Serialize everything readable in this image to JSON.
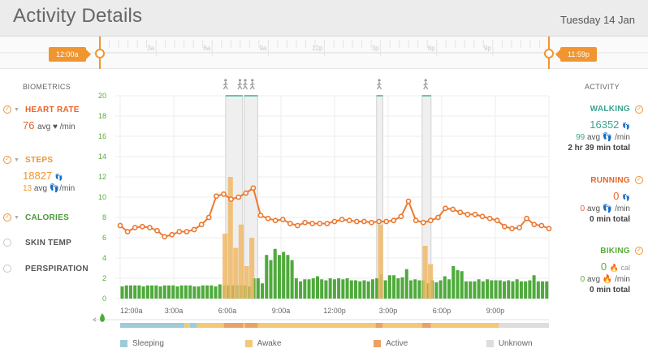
{
  "header": {
    "title": "Activity Details",
    "date": "Tuesday 14 Jan"
  },
  "timeline": {
    "start_label": "12:00a",
    "end_label": "11:59p",
    "ruler_labels": [
      "3a",
      "6a",
      "9a",
      "12p",
      "3p",
      "6p",
      "9p"
    ]
  },
  "biometrics": {
    "heading": "BIOMETRICS",
    "heart_rate": {
      "label": "HEART RATE",
      "value": "76",
      "unit": "avg ♥ /min",
      "color": "#e8632a"
    },
    "steps": {
      "label": "STEPS",
      "value": "18827",
      "value_icon": "👣",
      "avg": "13",
      "avg_unit": "avg 👣/min",
      "color": "#f0952f"
    },
    "calories": {
      "label": "CALORIES",
      "color": "#4a9a3a"
    },
    "skin_temp": {
      "label": "SKIN TEMP",
      "color": "#555555"
    },
    "perspiration": {
      "label": "PERSPIRATION",
      "color": "#555555"
    }
  },
  "activity": {
    "heading": "ACTIVITY",
    "walking": {
      "label": "WALKING",
      "value": "16352",
      "value_icon": "👣",
      "avg": "99",
      "avg_unit": "avg 👣 /min",
      "total": "2 hr 39 min total",
      "color": "#3aa58f"
    },
    "running": {
      "label": "RUNNING",
      "value": "0",
      "value_icon": "👣",
      "avg": "0",
      "avg_unit": "avg 👣 /min",
      "total": "0 min total",
      "color": "#e8632a"
    },
    "biking": {
      "label": "BIKING",
      "value": "0",
      "value_icon": "🔥 cal",
      "avg": "0",
      "avg_unit": "avg 🔥 /min",
      "total": "0 min total",
      "color": "#5aab3a"
    }
  },
  "legend": [
    {
      "label": "Sleeping",
      "color": "#9ecbd8"
    },
    {
      "label": "Awake",
      "color": "#f3c877"
    },
    {
      "label": "Active",
      "color": "#eaa167"
    },
    {
      "label": "Unknown",
      "color": "#dddddd"
    }
  ],
  "chart_data": {
    "type": "bar",
    "x_tick_labels": [
      "12:00a",
      "3:00a",
      "6:00a",
      "9:00a",
      "12:00p",
      "3:00p",
      "6:00p",
      "9:00p"
    ],
    "y_ticks": [
      0,
      2,
      4,
      6,
      8,
      10,
      12,
      14,
      16,
      18,
      20
    ],
    "ylim": [
      0,
      20
    ],
    "x_hours_range": [
      0,
      24
    ],
    "series": [
      {
        "kind": "calories",
        "values": [
          1.2,
          1.3,
          1.3,
          1.3,
          1.3,
          1.2,
          1.3,
          1.3,
          1.3,
          1.2,
          1.3,
          1.3,
          1.3,
          1.2,
          1.3,
          1.3,
          1.3,
          1.2,
          1.2,
          1.3,
          1.3,
          1.3,
          1.2,
          1.4,
          1.3,
          1.3,
          1.3,
          1.3,
          1.3,
          1.3,
          1.2,
          2.0,
          2.0,
          1.5,
          4.3,
          3.8,
          4.9,
          4.3,
          4.6,
          4.3,
          3.8,
          2.0,
          1.7,
          1.9,
          1.9,
          2.0,
          2.2,
          1.9,
          1.8,
          2.0,
          1.9,
          2.0,
          1.9,
          2.0,
          1.8,
          1.8,
          1.7,
          1.8,
          1.7,
          1.9,
          2.0,
          2.4,
          1.8,
          2.3,
          2.3,
          2.0,
          2.1,
          2.9,
          1.8,
          1.9,
          1.8,
          1.8,
          1.5,
          1.8,
          1.6,
          1.8,
          2.2,
          1.9,
          3.2,
          2.8,
          2.7,
          1.7,
          1.7,
          1.7,
          1.9,
          1.7,
          1.9,
          1.8,
          1.8,
          1.8,
          1.7,
          1.8,
          1.7,
          1.9,
          1.7,
          1.7,
          1.8,
          2.3,
          1.7,
          1.7,
          1.7
        ]
      },
      {
        "kind": "steps",
        "bars": [
          {
            "hour": 5.73,
            "value": 6.4
          },
          {
            "hour": 6.03,
            "value": 12.0
          },
          {
            "hour": 6.33,
            "value": 5.0
          },
          {
            "hour": 6.63,
            "value": 7.3
          },
          {
            "hour": 6.93,
            "value": 3.2
          },
          {
            "hour": 7.23,
            "value": 6.0
          },
          {
            "hour": 14.43,
            "value": 7.3
          },
          {
            "hour": 16.93,
            "value": 5.2
          },
          {
            "hour": 17.23,
            "value": 3.4
          }
        ]
      },
      {
        "kind": "heart_rate",
        "values": [
          7.2,
          6.6,
          7.0,
          7.1,
          7.0,
          6.7,
          6.1,
          6.3,
          6.6,
          6.6,
          6.8,
          7.3,
          8.0,
          10.1,
          10.3,
          9.8,
          10.0,
          10.4,
          10.9,
          8.2,
          7.9,
          7.7,
          7.8,
          7.4,
          7.2,
          7.5,
          7.4,
          7.4,
          7.4,
          7.6,
          7.8,
          7.7,
          7.6,
          7.6,
          7.5,
          7.6,
          7.6,
          7.7,
          8.1,
          9.6,
          7.7,
          7.5,
          7.7,
          8.0,
          8.9,
          8.8,
          8.5,
          8.3,
          8.3,
          8.1,
          7.9,
          7.7,
          7.1,
          6.9,
          7.0,
          7.9,
          7.3,
          7.2,
          6.9
        ]
      }
    ],
    "walking_markers_hours": [
      5.9,
      6.7,
      7.0,
      7.4,
      14.5,
      17.1
    ]
  }
}
